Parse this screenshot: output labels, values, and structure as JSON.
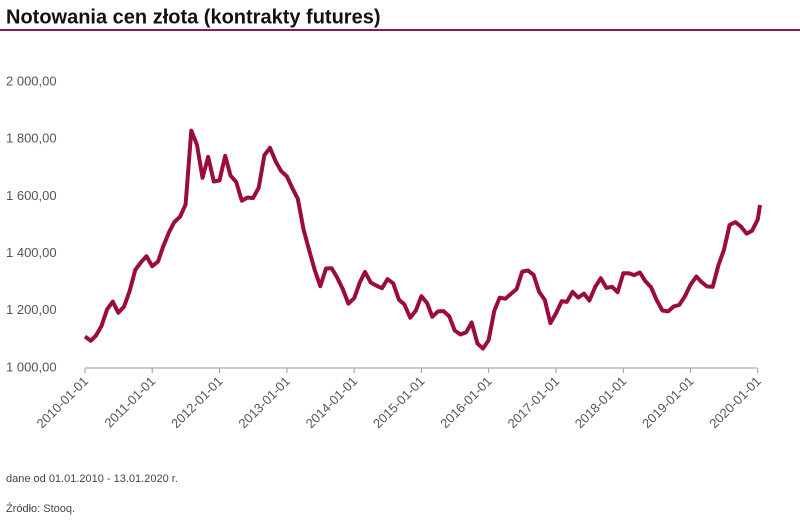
{
  "chart_data": {
    "type": "line",
    "title": "Notowania cen złota (kontrakty futures)",
    "note": "dane od 01.01.2010 - 13.01.2020 r.",
    "source": "Źródło: Stooq.",
    "color": "#9a0c3f",
    "x": [
      "2010-01-01",
      "2010-02-01",
      "2010-03-01",
      "2010-04-01",
      "2010-05-01",
      "2010-06-01",
      "2010-07-01",
      "2010-08-01",
      "2010-09-01",
      "2010-10-01",
      "2010-11-01",
      "2010-12-01",
      "2011-01-01",
      "2011-02-01",
      "2011-03-01",
      "2011-04-01",
      "2011-05-01",
      "2011-06-01",
      "2011-07-01",
      "2011-08-01",
      "2011-09-01",
      "2011-10-01",
      "2011-11-01",
      "2011-12-01",
      "2012-01-01",
      "2012-02-01",
      "2012-03-01",
      "2012-04-01",
      "2012-05-01",
      "2012-06-01",
      "2012-07-01",
      "2012-08-01",
      "2012-09-01",
      "2012-10-01",
      "2012-11-01",
      "2012-12-01",
      "2013-01-01",
      "2013-02-01",
      "2013-03-01",
      "2013-04-01",
      "2013-05-01",
      "2013-06-01",
      "2013-07-01",
      "2013-08-01",
      "2013-09-01",
      "2013-10-01",
      "2013-11-01",
      "2013-12-01",
      "2014-01-01",
      "2014-02-01",
      "2014-03-01",
      "2014-04-01",
      "2014-05-01",
      "2014-06-01",
      "2014-07-01",
      "2014-08-01",
      "2014-09-01",
      "2014-10-01",
      "2014-11-01",
      "2014-12-01",
      "2015-01-01",
      "2015-02-01",
      "2015-03-01",
      "2015-04-01",
      "2015-05-01",
      "2015-06-01",
      "2015-07-01",
      "2015-08-01",
      "2015-09-01",
      "2015-10-01",
      "2015-11-01",
      "2015-12-01",
      "2016-01-01",
      "2016-02-01",
      "2016-03-01",
      "2016-04-01",
      "2016-05-01",
      "2016-06-01",
      "2016-07-01",
      "2016-08-01",
      "2016-09-01",
      "2016-10-01",
      "2016-11-01",
      "2016-12-01",
      "2017-01-01",
      "2017-02-01",
      "2017-03-01",
      "2017-04-01",
      "2017-05-01",
      "2017-06-01",
      "2017-07-01",
      "2017-08-01",
      "2017-09-01",
      "2017-10-01",
      "2017-11-01",
      "2017-12-01",
      "2018-01-01",
      "2018-02-01",
      "2018-03-01",
      "2018-04-01",
      "2018-05-01",
      "2018-06-01",
      "2018-07-01",
      "2018-08-01",
      "2018-09-01",
      "2018-10-01",
      "2018-11-01",
      "2018-12-01",
      "2019-01-01",
      "2019-02-01",
      "2019-03-01",
      "2019-04-01",
      "2019-05-01",
      "2019-06-01",
      "2019-07-01",
      "2019-08-01",
      "2019-09-01",
      "2019-10-01",
      "2019-11-01",
      "2019-12-01",
      "2020-01-01",
      "2020-01-13"
    ],
    "values": [
      1110,
      1095,
      1113,
      1148,
      1205,
      1232,
      1193,
      1215,
      1271,
      1343,
      1370,
      1391,
      1356,
      1372,
      1424,
      1473,
      1510,
      1529,
      1572,
      1830,
      1780,
      1665,
      1738,
      1652,
      1656,
      1742,
      1673,
      1650,
      1585,
      1596,
      1594,
      1630,
      1744,
      1770,
      1722,
      1688,
      1670,
      1627,
      1592,
      1485,
      1414,
      1343,
      1286,
      1348,
      1349,
      1316,
      1275,
      1225,
      1244,
      1300,
      1336,
      1299,
      1288,
      1279,
      1311,
      1296,
      1239,
      1222,
      1176,
      1200,
      1251,
      1227,
      1179,
      1198,
      1199,
      1181,
      1131,
      1117,
      1125,
      1159,
      1086,
      1068,
      1097,
      1200,
      1246,
      1242,
      1259,
      1276,
      1337,
      1341,
      1326,
      1266,
      1238,
      1157,
      1192,
      1234,
      1231,
      1266,
      1246,
      1260,
      1236,
      1283,
      1314,
      1280,
      1284,
      1265,
      1331,
      1331,
      1325,
      1334,
      1303,
      1282,
      1238,
      1201,
      1198,
      1215,
      1221,
      1250,
      1291,
      1320,
      1301,
      1285,
      1284,
      1359,
      1413,
      1500,
      1510,
      1495,
      1470,
      1480,
      1520,
      1570
    ],
    "xlim": [
      "2010-01-01",
      "2020-01-13"
    ],
    "xticks": [
      "2010-01-01",
      "2011-01-01",
      "2012-01-01",
      "2013-01-01",
      "2014-01-01",
      "2015-01-01",
      "2016-01-01",
      "2017-01-01",
      "2018-01-01",
      "2019-01-01",
      "2020-01-01"
    ],
    "ylim": [
      1000,
      2000
    ],
    "yticks": [
      {
        "value": 1000,
        "label": "1 000,00"
      },
      {
        "value": 1200,
        "label": "1 200,00"
      },
      {
        "value": 1400,
        "label": "1 400,00"
      },
      {
        "value": 1600,
        "label": "1 600,00"
      },
      {
        "value": 1800,
        "label": "1 800,00"
      },
      {
        "value": 2000,
        "label": "2 000,00"
      }
    ]
  }
}
